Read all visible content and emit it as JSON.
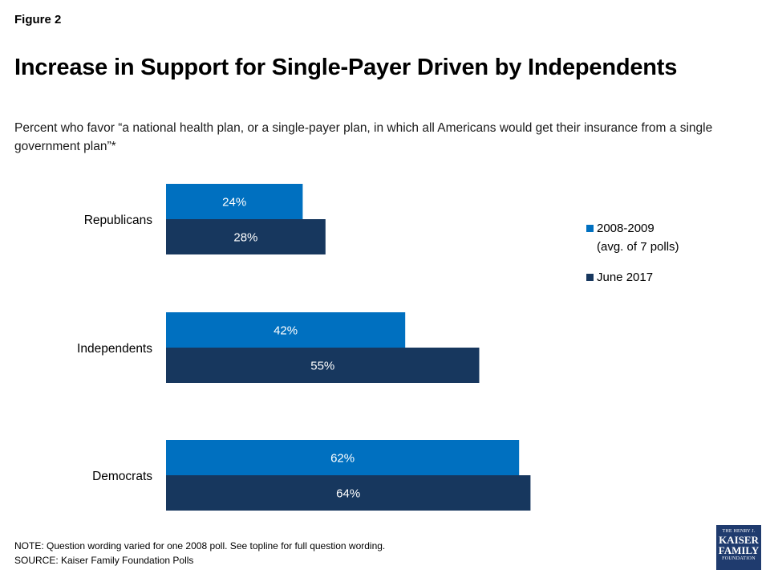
{
  "figure_label": "Figure 2",
  "title": "Increase in Support for Single-Payer Driven by Independents",
  "subtitle": "Percent who favor “a national health plan, or a single-payer plan, in which all Americans would get their insurance from a single government plan”*",
  "chart_data": {
    "type": "bar",
    "orientation": "horizontal",
    "categories": [
      "Republicans",
      "Independents",
      "Democrats"
    ],
    "series": [
      {
        "name": "2008-2009",
        "name_line2": "(avg. of 7 polls)",
        "values": [
          24,
          42,
          62
        ],
        "color": "#0070C0"
      },
      {
        "name": "June 2017",
        "values": [
          28,
          55,
          64
        ],
        "color": "#17375E"
      }
    ],
    "value_suffix": "%",
    "xlim": [
      0,
      100
    ],
    "grid": false,
    "legend_position": "right"
  },
  "note": "NOTE: Question wording varied for one 2008 poll. See topline for full question wording.",
  "source": "SOURCE: Kaiser Family Foundation Polls",
  "logo": {
    "line1": "THE HENRY J.",
    "line2": "KAISER",
    "line3": "FAMILY",
    "line4": "FOUNDATION"
  }
}
